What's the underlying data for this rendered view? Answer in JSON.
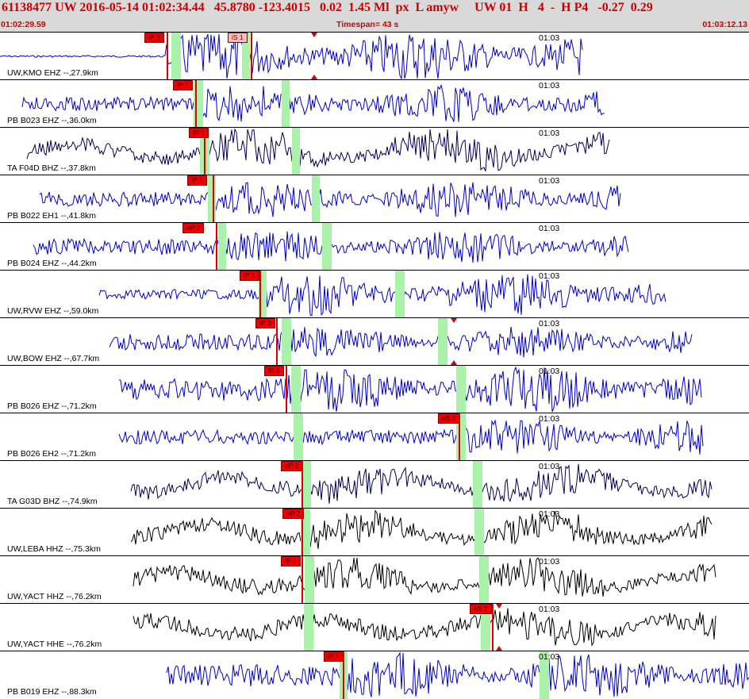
{
  "header": {
    "title": "61138477 UW 2016-05-14 01:02:34.44   45.8780 -123.4015   0.02  1.45 Ml  px  L amyw     UW 01  H   4  -  H P4   -0.27  0.29",
    "start_time": "01:02:29.59",
    "timespan": "Timespan=  43 s",
    "end_time": "01:03:12.13"
  },
  "colors": {
    "header_bg": "#d9d9d9",
    "header_text": "#cc0000",
    "pick": "#ee0000",
    "band": "#aaf2aa",
    "blue": "#0000cc",
    "black": "#000000",
    "darkblue": "#000055"
  },
  "traces": [
    {
      "label": "UW,KMO EHZ --,27.9km",
      "time_mark": "01:03",
      "color": "blue",
      "picks": [
        "iP 0",
        "iS 1"
      ],
      "style": "flat"
    },
    {
      "label": "PB B023 EHZ --,36.0km",
      "time_mark": "01:03",
      "color": "blue",
      "picks": [
        "iP 1"
      ],
      "style": "med"
    },
    {
      "label": "TA F04D BHZ --,37.8km",
      "time_mark": "01:03",
      "color": "darkblue",
      "picks": [
        "iP 1"
      ],
      "style": "med"
    },
    {
      "label": "PB B022 EH1 --,41.8km",
      "time_mark": "01:03",
      "color": "blue",
      "picks": [
        "iP 1"
      ],
      "style": "med"
    },
    {
      "label": "PB B024 EHZ --,44.2km",
      "time_mark": "01:03",
      "color": "blue",
      "picks": [
        "eP 2"
      ],
      "style": "low"
    },
    {
      "label": "UW,RVW EHZ --,59.0km",
      "time_mark": "01:03",
      "color": "blue",
      "picks": [
        "iP 1"
      ],
      "style": "quiet"
    },
    {
      "label": "UW,BOW EHZ --,67.7km",
      "time_mark": "01:03",
      "color": "blue",
      "picks": [
        "iP 0"
      ],
      "style": "low"
    },
    {
      "label": "PB B026 EHZ --,71.2km",
      "time_mark": "01:03",
      "color": "blue",
      "picks": [
        "iP 1"
      ],
      "style": "big"
    },
    {
      "label": "PB B026 EH2 --,71.2km",
      "time_mark": "01:03",
      "color": "blue",
      "picks": [
        "eS 2"
      ],
      "style": "med"
    },
    {
      "label": "TA G03D BHZ --,74.9km",
      "time_mark": "01:03",
      "color": "darkblue",
      "picks": [
        "eP 2"
      ],
      "style": "low"
    },
    {
      "label": "UW,LEBA HHZ --,75.3km",
      "time_mark": "01:03",
      "color": "black",
      "picks": [
        "eP 2"
      ],
      "style": "low"
    },
    {
      "label": "UW,YACT HHZ --,76.2km",
      "time_mark": "01:03",
      "color": "black",
      "picks": [
        "iP 1"
      ],
      "style": "low"
    },
    {
      "label": "UW,YACT HHE --,76.2km",
      "time_mark": "01:03",
      "color": "black",
      "picks": [
        "eS 2"
      ],
      "style": "low"
    },
    {
      "label": "PB B019 EHZ --,88.3km",
      "time_mark": "01:03",
      "color": "blue",
      "picks": [
        "iP 1"
      ],
      "style": "big"
    }
  ]
}
